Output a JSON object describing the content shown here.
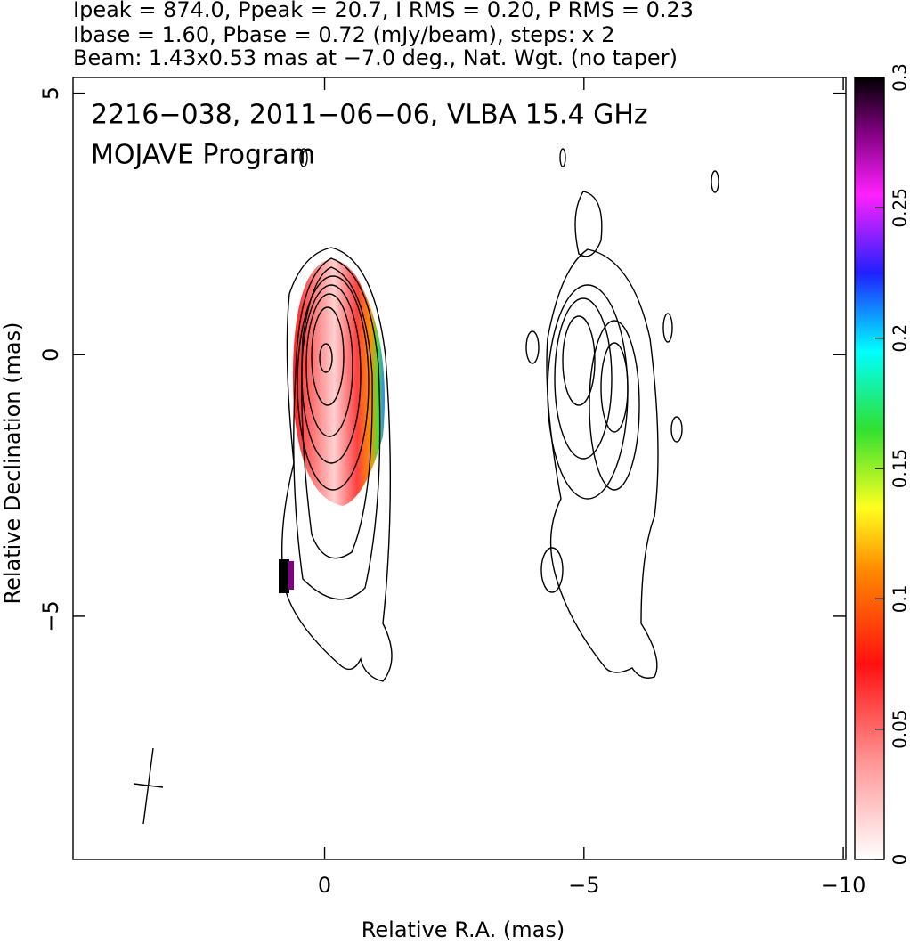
{
  "chart_data": {
    "type": "contour-map",
    "title_lines": [
      "Ipeak = 874.0, Ppeak = 20.7, I RMS = 0.20, P RMS = 0.23",
      "Ibase = 1.60, Pbase = 0.72 (mJy/beam), steps: x 2",
      "Beam: 1.43x0.53 mas at −7.0 deg., Nat. Wgt. (no taper)"
    ],
    "annotations": [
      "2216−038, 2011−06−06, VLBA 15.4 GHz",
      "MOJAVE Program"
    ],
    "x_label": "Relative R.A. (mas)",
    "y_label": "Relative Declination (mas)",
    "xlim": [
      4.85,
      -10.05
    ],
    "ylim": [
      -9.65,
      5.3
    ],
    "xticks": [
      0,
      {
        "value": -5,
        "label": "−5"
      },
      {
        "value": -10,
        "label": "−10"
      }
    ],
    "yticks": [
      5,
      0,
      {
        "value": -5,
        "label": "−5"
      }
    ],
    "colorbar": {
      "lim": [
        0,
        0.3
      ],
      "ticks": [
        0,
        0.05,
        0.1,
        0.15,
        0.2,
        0.25,
        0.3
      ]
    }
  }
}
